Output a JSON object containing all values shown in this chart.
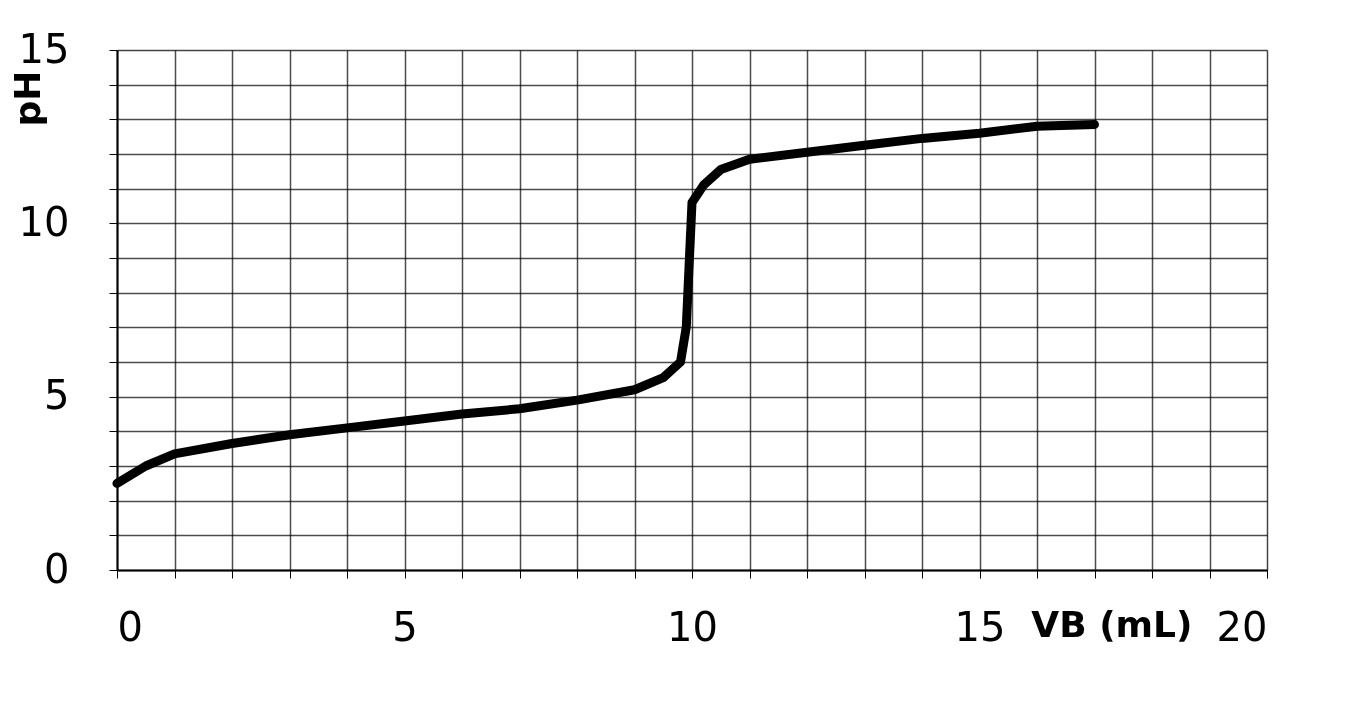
{
  "chart_data": {
    "type": "line",
    "xlabel": "VB (mL)",
    "ylabel": "pH",
    "x": [
      0,
      0.5,
      1,
      2,
      3,
      4,
      5,
      6,
      7,
      8,
      9,
      9.5,
      9.8,
      9.9,
      9.95,
      10,
      10.2,
      10.5,
      11,
      12,
      13,
      14,
      15,
      16,
      17
    ],
    "series": [
      {
        "color": "#000000",
        "values": [
          2.5,
          3.0,
          3.35,
          3.65,
          3.9,
          4.1,
          4.3,
          4.5,
          4.65,
          4.9,
          5.2,
          5.55,
          6.0,
          7.0,
          8.8,
          10.6,
          11.1,
          11.55,
          11.85,
          12.05,
          12.25,
          12.45,
          12.6,
          12.8,
          12.85
        ]
      }
    ],
    "xlim": [
      0,
      20
    ],
    "ylim": [
      0,
      15
    ],
    "xticks": [
      0,
      {
        "value": 1,
        "label": null
      },
      {
        "value": 2,
        "label": null
      },
      {
        "value": 3,
        "label": null
      },
      {
        "value": 4,
        "label": null
      },
      5,
      {
        "value": 6,
        "label": null
      },
      {
        "value": 7,
        "label": null
      },
      {
        "value": 8,
        "label": null
      },
      {
        "value": 9,
        "label": null
      },
      10,
      {
        "value": 11,
        "label": null
      },
      {
        "value": 12,
        "label": null
      },
      {
        "value": 13,
        "label": null
      },
      {
        "value": 14,
        "label": null
      },
      15,
      {
        "value": 16,
        "label": null
      },
      {
        "value": 17,
        "label": null
      },
      {
        "value": 18,
        "label": null
      },
      {
        "value": 19,
        "label": null
      },
      20
    ],
    "yticks": [
      0,
      {
        "value": 1,
        "label": null
      },
      {
        "value": 2,
        "label": null
      },
      {
        "value": 3,
        "label": null
      },
      {
        "value": 4,
        "label": null
      },
      5,
      {
        "value": 6,
        "label": null
      },
      {
        "value": 7,
        "label": null
      },
      {
        "value": 8,
        "label": null
      },
      {
        "value": 9,
        "label": null
      },
      10,
      {
        "value": 11,
        "label": null
      },
      {
        "value": 12,
        "label": null
      },
      {
        "value": 13,
        "label": null
      },
      {
        "value": 14,
        "label": null
      },
      15
    ],
    "grid": true,
    "line_style": "solid",
    "legend": false
  }
}
